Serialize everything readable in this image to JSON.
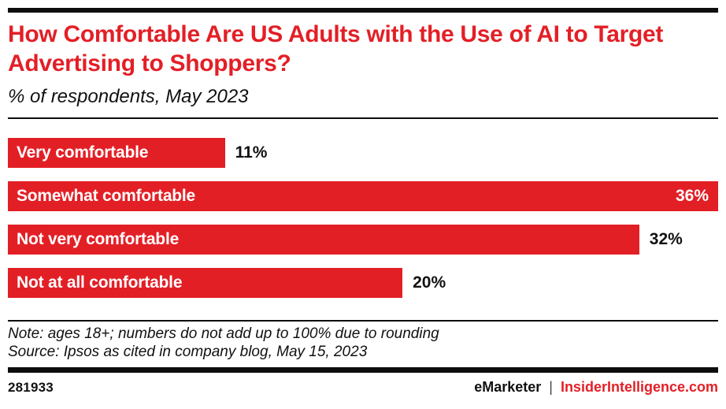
{
  "colors": {
    "accent_red": "#e31f26",
    "rule_black": "#0d0d0d",
    "text_black": "#111111",
    "bar_label_white": "#ffffff"
  },
  "chart_data": {
    "type": "bar",
    "orientation": "horizontal",
    "title": "How Comfortable Are US Adults with the Use of AI to Target Advertising to Shoppers?",
    "subtitle": "% of respondents, May 2023",
    "categories": [
      "Very comfortable",
      "Somewhat comfortable",
      "Not very comfortable",
      "Not at all comfortable"
    ],
    "values": [
      11,
      36,
      32,
      20
    ],
    "value_suffix": "%",
    "scale_max": 36,
    "grid": false,
    "legend": "none",
    "note": "Note: ages 18+; numbers do not add up to 100% due to rounding",
    "source": "Source: Ipsos as cited in company blog, May 15, 2023"
  },
  "footer": {
    "chart_id": "281933",
    "brand_left": "eMarketer",
    "separator": "|",
    "brand_right": "InsiderIntelligence.com"
  }
}
